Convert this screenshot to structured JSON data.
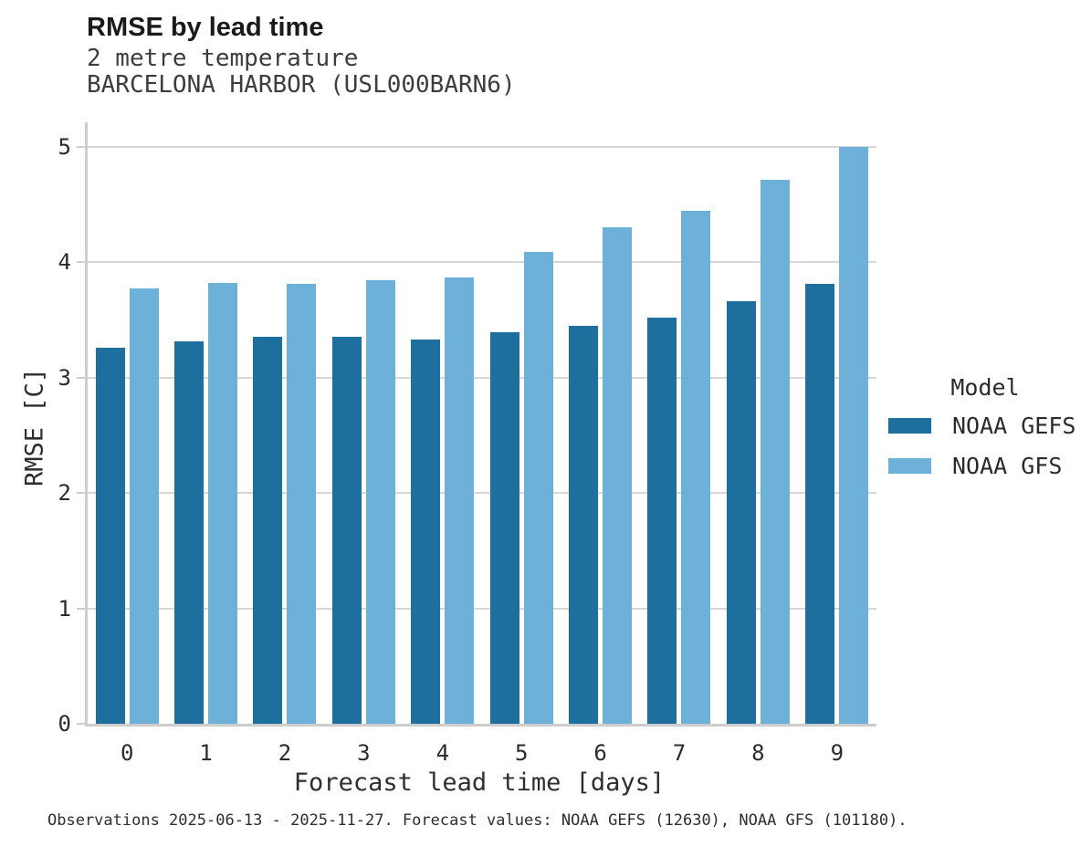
{
  "header": {
    "title": "RMSE by lead time",
    "subtitle_line1": "2 metre temperature",
    "subtitle_line2": "BARCELONA HARBOR (USL000BARN6)"
  },
  "chart_data": {
    "type": "bar",
    "title": "RMSE by lead time",
    "subtitle": [
      "2 metre temperature",
      "BARCELONA HARBOR (USL000BARN6)"
    ],
    "xlabel": "Forecast lead time [days]",
    "ylabel": "RMSE [C]",
    "categories": [
      "0",
      "1",
      "2",
      "3",
      "4",
      "5",
      "6",
      "7",
      "8",
      "9"
    ],
    "series": [
      {
        "name": "NOAA GEFS",
        "color": "#1d6f9e",
        "values": [
          3.26,
          3.31,
          3.35,
          3.35,
          3.33,
          3.39,
          3.45,
          3.52,
          3.66,
          3.81
        ]
      },
      {
        "name": "NOAA GFS",
        "color": "#6db1d9",
        "values": [
          3.77,
          3.82,
          3.81,
          3.84,
          3.87,
          4.09,
          4.3,
          4.44,
          4.71,
          5.0
        ]
      }
    ],
    "yticks": [
      0,
      1,
      2,
      3,
      4,
      5
    ],
    "ylim": [
      0,
      5.21
    ],
    "grid": "horizontal",
    "legend_title": "Model",
    "legend_position": "right"
  },
  "footer": {
    "text": "Observations 2025-06-13 - 2025-11-27. Forecast values: NOAA GEFS (12630), NOAA GFS (101180)."
  }
}
